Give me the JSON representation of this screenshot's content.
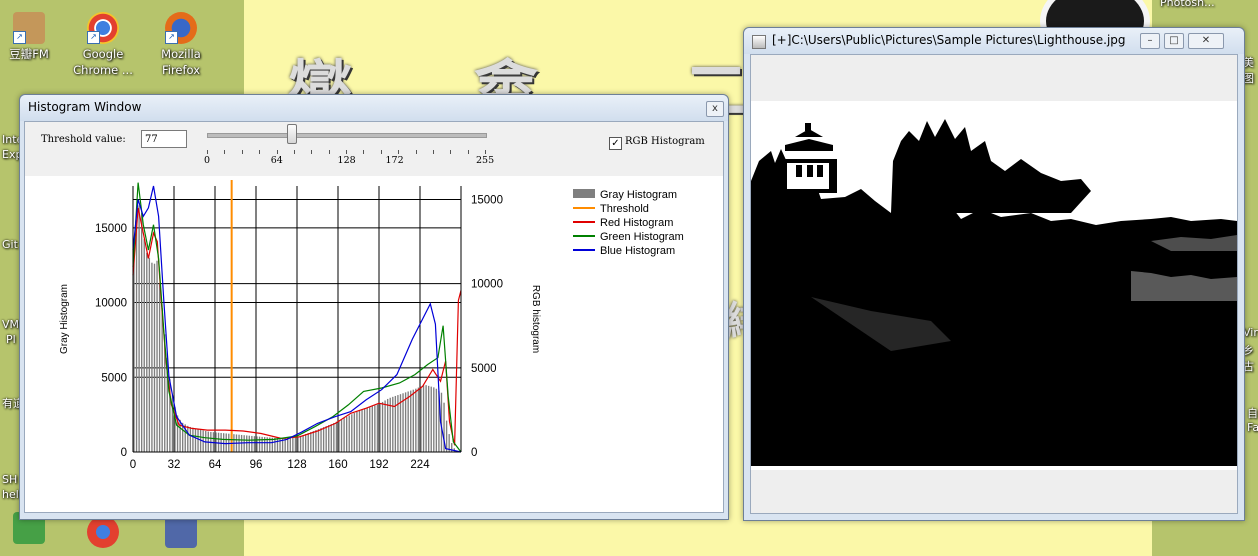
{
  "desktop": {
    "icons": [
      {
        "label": "豆瓣FM",
        "color": "#c4975a"
      },
      {
        "label": "Google\nChrome ...",
        "color": "#3c9b3c"
      },
      {
        "label": "Mozilla\nFirefox",
        "color": "#e46c1a"
      }
    ],
    "edge_left": [
      "Inte",
      "Exp",
      "Git",
      "VM",
      "Pl",
      "有道",
      "SH",
      "hell"
    ],
    "edge_right": [
      "Photosh...",
      "美图",
      "Vir",
      "乡古",
      "自",
      "Fa"
    ]
  },
  "histogram_window": {
    "title": "Histogram Window",
    "close_glyph": "x",
    "threshold_label": "Threshold value:",
    "threshold_value": "77",
    "slider": {
      "min": 0,
      "max": 255,
      "value": 77,
      "tick_labels": [
        "0",
        "64",
        "128",
        "172",
        "255"
      ]
    },
    "rgb_checked": true,
    "rgb_label": "RGB Histogram"
  },
  "image_window": {
    "title": "[+]C:\\Users\\Public\\Pictures\\Sample Pictures\\Lighthouse.jpg",
    "buttons": [
      "minimize",
      "maximize",
      "close"
    ]
  },
  "colors": {
    "gray": "#7f7f7f",
    "threshold": "#ff8c00",
    "red": "#e00000",
    "green": "#008000",
    "blue": "#0000d8"
  },
  "chart_data": {
    "type": "bar",
    "x_ticks": [
      0,
      32,
      64,
      96,
      128,
      160,
      192,
      224
    ],
    "y_left": {
      "label": "Gray Histogram",
      "ticks": [
        0,
        5000,
        10000,
        15000
      ],
      "range": [
        0,
        17800
      ]
    },
    "y_right": {
      "label": "RGB histogram",
      "ticks": [
        0,
        5000,
        10000,
        15000
      ],
      "range": [
        0,
        15800
      ]
    },
    "x_range": [
      0,
      256
    ],
    "threshold": 77,
    "legend": [
      {
        "name": "Gray Histogram",
        "kind": "bar",
        "color_key": "gray"
      },
      {
        "name": "Threshold",
        "kind": "line",
        "color_key": "threshold"
      },
      {
        "name": "Red Histogram",
        "kind": "line",
        "color_key": "red"
      },
      {
        "name": "Green Histogram",
        "kind": "line",
        "color_key": "green"
      },
      {
        "name": "Blue Histogram",
        "kind": "line",
        "color_key": "blue"
      }
    ],
    "gray": [
      [
        0,
        12000
      ],
      [
        3,
        15500
      ],
      [
        6,
        17000
      ],
      [
        8,
        15000
      ],
      [
        10,
        13500
      ],
      [
        13,
        13000
      ],
      [
        16,
        12500
      ],
      [
        19,
        12800
      ],
      [
        22,
        10500
      ],
      [
        26,
        7000
      ],
      [
        30,
        4200
      ],
      [
        34,
        2600
      ],
      [
        38,
        2000
      ],
      [
        44,
        1700
      ],
      [
        52,
        1500
      ],
      [
        60,
        1350
      ],
      [
        72,
        1250
      ],
      [
        84,
        1150
      ],
      [
        96,
        1050
      ],
      [
        110,
        950
      ],
      [
        120,
        900
      ],
      [
        132,
        1100
      ],
      [
        144,
        1500
      ],
      [
        156,
        1900
      ],
      [
        168,
        2400
      ],
      [
        180,
        2900
      ],
      [
        192,
        3200
      ],
      [
        200,
        3600
      ],
      [
        210,
        3900
      ],
      [
        220,
        4200
      ],
      [
        228,
        4500
      ],
      [
        236,
        4300
      ],
      [
        242,
        3900
      ],
      [
        246,
        1500
      ],
      [
        250,
        300
      ],
      [
        256,
        0
      ]
    ],
    "red": [
      [
        0,
        10500
      ],
      [
        4,
        14500
      ],
      [
        8,
        13000
      ],
      [
        12,
        11500
      ],
      [
        16,
        13000
      ],
      [
        19,
        12500
      ],
      [
        22,
        9000
      ],
      [
        26,
        5200
      ],
      [
        30,
        2800
      ],
      [
        36,
        1600
      ],
      [
        46,
        1400
      ],
      [
        58,
        1300
      ],
      [
        72,
        1300
      ],
      [
        86,
        1250
      ],
      [
        100,
        1100
      ],
      [
        116,
        800
      ],
      [
        130,
        900
      ],
      [
        144,
        1250
      ],
      [
        158,
        1700
      ],
      [
        170,
        2300
      ],
      [
        182,
        2600
      ],
      [
        192,
        2900
      ],
      [
        204,
        2700
      ],
      [
        216,
        3300
      ],
      [
        226,
        3900
      ],
      [
        234,
        4900
      ],
      [
        240,
        4200
      ],
      [
        244,
        5400
      ],
      [
        247,
        1800
      ],
      [
        251,
        400
      ],
      [
        254,
        9000
      ],
      [
        256,
        9600
      ]
    ],
    "green": [
      [
        0,
        11000
      ],
      [
        4,
        16000
      ],
      [
        8,
        13500
      ],
      [
        12,
        12000
      ],
      [
        16,
        13500
      ],
      [
        20,
        11500
      ],
      [
        24,
        7200
      ],
      [
        28,
        3600
      ],
      [
        34,
        1600
      ],
      [
        44,
        1000
      ],
      [
        56,
        850
      ],
      [
        70,
        750
      ],
      [
        90,
        700
      ],
      [
        110,
        750
      ],
      [
        128,
        950
      ],
      [
        142,
        1500
      ],
      [
        156,
        2100
      ],
      [
        168,
        2800
      ],
      [
        180,
        3600
      ],
      [
        194,
        3800
      ],
      [
        208,
        4100
      ],
      [
        220,
        4600
      ],
      [
        230,
        5200
      ],
      [
        238,
        5600
      ],
      [
        242,
        7500
      ],
      [
        246,
        3300
      ],
      [
        250,
        600
      ],
      [
        256,
        0
      ]
    ],
    "blue": [
      [
        0,
        12000
      ],
      [
        4,
        15000
      ],
      [
        8,
        14000
      ],
      [
        12,
        14500
      ],
      [
        16,
        15800
      ],
      [
        20,
        14000
      ],
      [
        24,
        9000
      ],
      [
        28,
        4500
      ],
      [
        34,
        2100
      ],
      [
        44,
        1000
      ],
      [
        56,
        600
      ],
      [
        72,
        500
      ],
      [
        90,
        550
      ],
      [
        108,
        550
      ],
      [
        120,
        750
      ],
      [
        132,
        1200
      ],
      [
        144,
        1700
      ],
      [
        158,
        2100
      ],
      [
        170,
        2400
      ],
      [
        182,
        3100
      ],
      [
        194,
        3700
      ],
      [
        206,
        4600
      ],
      [
        218,
        6700
      ],
      [
        226,
        7900
      ],
      [
        232,
        8800
      ],
      [
        236,
        7600
      ],
      [
        240,
        1800
      ],
      [
        244,
        200
      ],
      [
        256,
        0
      ]
    ]
  }
}
